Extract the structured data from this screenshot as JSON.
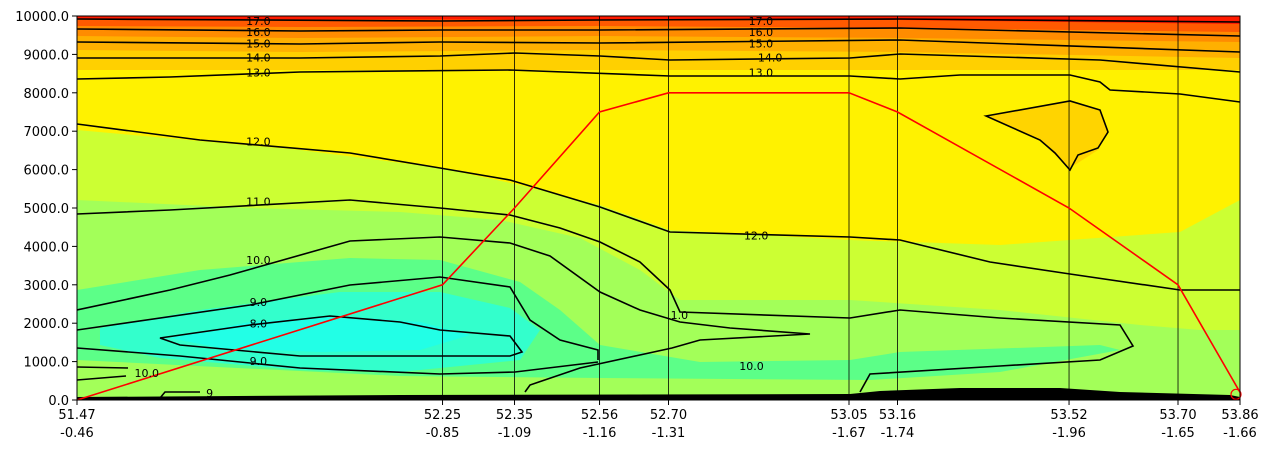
{
  "chart_data": {
    "type": "contour",
    "title": "",
    "xlabel": "",
    "ylabel": "",
    "ylim": [
      0,
      10000
    ],
    "yticks": [
      {
        "value": 0,
        "label": "0.0"
      },
      {
        "value": 1000,
        "label": "1000.0"
      },
      {
        "value": 2000,
        "label": "2000.0"
      },
      {
        "value": 3000,
        "label": "3000.0"
      },
      {
        "value": 4000,
        "label": "4000.0"
      },
      {
        "value": 5000,
        "label": "5000.0"
      },
      {
        "value": 6000,
        "label": "6000.0"
      },
      {
        "value": 7000,
        "label": "7000.0"
      },
      {
        "value": 8000,
        "label": "8000.0"
      },
      {
        "value": 9000,
        "label": "9000.0"
      },
      {
        "value": 10000,
        "label": "10000.0"
      }
    ],
    "stations": [
      {
        "lat": "51.47",
        "lon": "-0.46",
        "position": 0.0
      },
      {
        "lat": "52.25",
        "lon": "-0.85",
        "position": 0.3143
      },
      {
        "lat": "52.35",
        "lon": "-1.09",
        "position": 0.3762
      },
      {
        "lat": "52.56",
        "lon": "-1.16",
        "position": 0.4493
      },
      {
        "lat": "52.70",
        "lon": "-1.31",
        "position": 0.5086
      },
      {
        "lat": "53.05",
        "lon": "-1.67",
        "position": 0.6638
      },
      {
        "lat": "53.16",
        "lon": "-1.74",
        "position": 0.7055
      },
      {
        "lat": "53.52",
        "lon": "-1.96",
        "position": 0.853
      },
      {
        "lat": "53.70",
        "lon": "-1.65",
        "position": 0.9467
      },
      {
        "lat": "53.86",
        "lon": "-1.66",
        "position": 1.0
      }
    ],
    "contour_labels": [
      {
        "text": "17.0",
        "x": 0.156,
        "y": 9870
      },
      {
        "text": "16.0",
        "x": 0.156,
        "y": 9580
      },
      {
        "text": "15.0",
        "x": 0.156,
        "y": 9280
      },
      {
        "text": "14.0",
        "x": 0.156,
        "y": 8920
      },
      {
        "text": "13.0",
        "x": 0.156,
        "y": 8530
      },
      {
        "text": "12.0",
        "x": 0.156,
        "y": 6730
      },
      {
        "text": "11.0",
        "x": 0.156,
        "y": 5170
      },
      {
        "text": "10.0",
        "x": 0.156,
        "y": 3640
      },
      {
        "text": "9.0",
        "x": 0.156,
        "y": 2550
      },
      {
        "text": "8.0",
        "x": 0.156,
        "y": 1990
      },
      {
        "text": "9.0",
        "x": 0.156,
        "y": 1010
      },
      {
        "text": "10.0",
        "x": 0.06,
        "y": 700
      },
      {
        "text": "9",
        "x": 0.114,
        "y": 180
      },
      {
        "text": "17.0",
        "x": 0.588,
        "y": 9870
      },
      {
        "text": "16.0",
        "x": 0.588,
        "y": 9580
      },
      {
        "text": "15.0",
        "x": 0.588,
        "y": 9280
      },
      {
        "text": "14.0",
        "x": 0.596,
        "y": 8920
      },
      {
        "text": "13.0",
        "x": 0.588,
        "y": 8530
      },
      {
        "text": "12.0",
        "x": 0.584,
        "y": 4280
      },
      {
        "text": "1.0",
        "x": 0.518,
        "y": 2210
      },
      {
        "text": "10.0",
        "x": 0.58,
        "y": 890
      }
    ],
    "track": {
      "color": "#ff0000",
      "points": [
        {
          "x": 0.0,
          "y": 0
        },
        {
          "x": 0.3143,
          "y": 3000
        },
        {
          "x": 0.3762,
          "y": 5000
        },
        {
          "x": 0.4493,
          "y": 7500
        },
        {
          "x": 0.5086,
          "y": 8000
        },
        {
          "x": 0.6638,
          "y": 8000
        },
        {
          "x": 0.7055,
          "y": 7500
        },
        {
          "x": 0.853,
          "y": 5000
        },
        {
          "x": 0.9467,
          "y": 3000
        },
        {
          "x": 1.0,
          "y": 200
        }
      ]
    },
    "colors": {
      "yellow": "#fff200",
      "lime": "#ccff33",
      "green": "#a3ff59",
      "cyan": "#33ffcc",
      "orange": "#ffa500",
      "red": "#ff1a00",
      "contour": "#000000",
      "station_line": "#000000"
    }
  }
}
